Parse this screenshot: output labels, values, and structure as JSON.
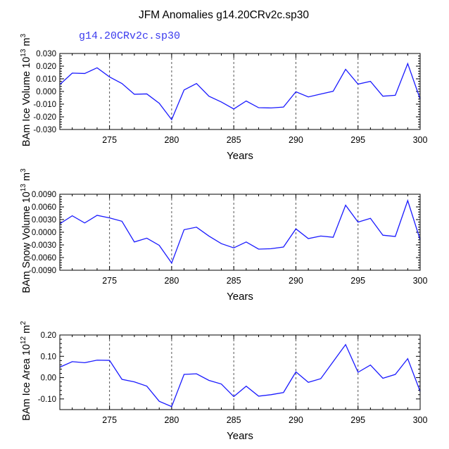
{
  "title": "JFM Anomalies g14.20CRv2c.sp30",
  "subtitle": "g14.20CRv2c.sp30",
  "colors": {
    "line": "#1a1aff",
    "subtitle": "#3a3aee",
    "axis": "#000000",
    "grid": "#555555"
  },
  "chart_data": [
    {
      "type": "line",
      "ylabel_parts": [
        "BAm Ice Volume 10",
        "13",
        " m",
        "3"
      ],
      "xlabel": "Years",
      "xlim": [
        271,
        300
      ],
      "ylim": [
        -0.03,
        0.03
      ],
      "x_ticks": [
        275,
        280,
        285,
        290,
        295,
        300
      ],
      "y_ticks": [
        -0.03,
        -0.02,
        -0.01,
        0.0,
        0.01,
        0.02,
        0.03
      ],
      "y_tick_labels": [
        "-0.030",
        "-0.020",
        "-0.010",
        "0.000",
        "0.010",
        "0.020",
        "0.030"
      ],
      "grid_x": [
        275,
        280,
        285,
        290,
        295
      ],
      "x": [
        271,
        272,
        273,
        274,
        275,
        276,
        277,
        278,
        279,
        280,
        281,
        282,
        283,
        284,
        285,
        286,
        287,
        288,
        289,
        290,
        291,
        292,
        293,
        294,
        295,
        296,
        297,
        298,
        299,
        300
      ],
      "values": [
        0.0055,
        0.0145,
        0.0142,
        0.0187,
        0.0115,
        0.0063,
        -0.0022,
        -0.0019,
        -0.0093,
        -0.0222,
        0.0012,
        0.0063,
        -0.0037,
        -0.0083,
        -0.0138,
        -0.0075,
        -0.0128,
        -0.013,
        -0.0123,
        -0.0002,
        -0.0043,
        -0.002,
        0.0002,
        0.0175,
        0.0058,
        0.008,
        -0.0037,
        -0.003,
        0.022,
        -0.006
      ]
    },
    {
      "type": "line",
      "ylabel_parts": [
        "BAm Snow Volume 10",
        "13",
        " m",
        "3"
      ],
      "xlabel": "Years",
      "xlim": [
        271,
        300
      ],
      "ylim": [
        -0.009,
        0.009
      ],
      "x_ticks": [
        275,
        280,
        285,
        290,
        295,
        300
      ],
      "y_ticks": [
        -0.009,
        -0.006,
        -0.003,
        0.0,
        0.003,
        0.006,
        0.009
      ],
      "y_tick_labels": [
        "-0.0090",
        "-0.0060",
        "-0.0030",
        "0.0000",
        "0.0030",
        "0.0060",
        "0.0090"
      ],
      "grid_x": [
        275,
        280,
        285,
        290,
        295
      ],
      "x": [
        271,
        272,
        273,
        274,
        275,
        276,
        277,
        278,
        279,
        280,
        281,
        282,
        283,
        284,
        285,
        286,
        287,
        288,
        289,
        290,
        291,
        292,
        293,
        294,
        295,
        296,
        297,
        298,
        299,
        300
      ],
      "values": [
        0.002,
        0.0039,
        0.0022,
        0.004,
        0.0034,
        0.0026,
        -0.0023,
        -0.0014,
        -0.0031,
        -0.0073,
        0.0006,
        0.0012,
        -0.0009,
        -0.0027,
        -0.0037,
        -0.0023,
        -0.004,
        -0.0039,
        -0.0035,
        0.0008,
        -0.0015,
        -0.0009,
        -0.0012,
        0.0064,
        0.0024,
        0.0033,
        -0.0007,
        -0.001,
        0.0075,
        -0.0018
      ]
    },
    {
      "type": "line",
      "ylabel_parts": [
        "BAm Ice Area 10",
        "12",
        " m",
        "2"
      ],
      "xlabel": "Years",
      "xlim": [
        271,
        300
      ],
      "ylim": [
        -0.15,
        0.2
      ],
      "x_ticks": [
        275,
        280,
        285,
        290,
        295,
        300
      ],
      "y_ticks": [
        -0.1,
        0.0,
        0.1,
        0.2
      ],
      "y_tick_labels": [
        "-0.10",
        "0.00",
        "0.10",
        "0.20"
      ],
      "grid_x": [
        275,
        280,
        285,
        290,
        295
      ],
      "x": [
        271,
        272,
        273,
        274,
        275,
        276,
        277,
        278,
        279,
        280,
        281,
        282,
        283,
        284,
        285,
        286,
        287,
        288,
        289,
        290,
        291,
        292,
        293,
        294,
        295,
        296,
        297,
        298,
        299,
        300
      ],
      "values": [
        0.049,
        0.075,
        0.07,
        0.082,
        0.081,
        -0.008,
        -0.02,
        -0.04,
        -0.111,
        -0.136,
        0.015,
        0.018,
        -0.013,
        -0.03,
        -0.089,
        -0.04,
        -0.087,
        -0.08,
        -0.07,
        0.027,
        -0.022,
        -0.005,
        0.075,
        0.155,
        0.025,
        0.059,
        -0.003,
        0.015,
        0.089,
        -0.065
      ]
    }
  ]
}
